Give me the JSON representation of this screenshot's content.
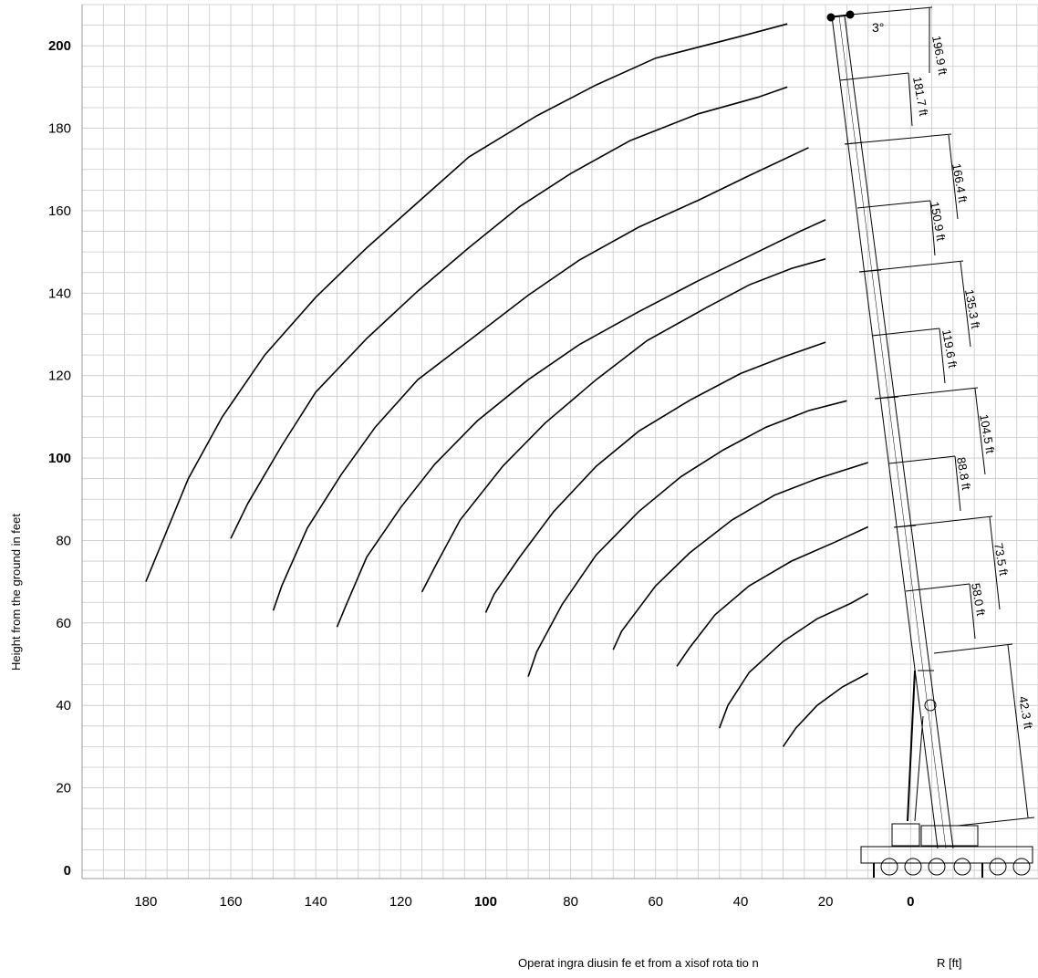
{
  "chart_data": {
    "type": "line",
    "title": "",
    "ylabel": "Height from the ground in feet",
    "xlabel": "Operat ingra diusin fe et from a xisof rota tio n",
    "x_unit_label": "R [ft]",
    "xlim": [
      195,
      -30
    ],
    "ylim": [
      -2,
      210
    ],
    "x_ticks": [
      {
        "value": 180,
        "label": "180",
        "bold": false
      },
      {
        "value": 160,
        "label": "160",
        "bold": false
      },
      {
        "value": 140,
        "label": "140",
        "bold": false
      },
      {
        "value": 120,
        "label": "120",
        "bold": false
      },
      {
        "value": 100,
        "label": "100",
        "bold": true
      },
      {
        "value": 80,
        "label": "80",
        "bold": false
      },
      {
        "value": 60,
        "label": "60",
        "bold": false
      },
      {
        "value": 40,
        "label": "40",
        "bold": false
      },
      {
        "value": 20,
        "label": "20",
        "bold": false
      },
      {
        "value": 0,
        "label": "0",
        "bold": true
      }
    ],
    "y_ticks": [
      {
        "value": 0,
        "label": "0",
        "bold": true
      },
      {
        "value": 20,
        "label": "20",
        "bold": false
      },
      {
        "value": 40,
        "label": "40",
        "bold": false
      },
      {
        "value": 60,
        "label": "60",
        "bold": false
      },
      {
        "value": 80,
        "label": "80",
        "bold": false
      },
      {
        "value": 100,
        "label": "100",
        "bold": true
      },
      {
        "value": 120,
        "label": "120",
        "bold": false
      },
      {
        "value": 140,
        "label": "140",
        "bold": false
      },
      {
        "value": 160,
        "label": "160",
        "bold": false
      },
      {
        "value": 180,
        "label": "180",
        "bold": false
      },
      {
        "value": 200,
        "label": "200",
        "bold": true
      }
    ],
    "grid": true,
    "boom_angle_label": "3°",
    "boom_lengths": [
      "196.9 ft",
      "181.7 ft",
      "166.4 ft",
      "150.9 ft",
      "135.3 ft",
      "119.6 ft",
      "104.5 ft",
      "88.8 ft",
      "73.5 ft",
      "58.0 ft",
      "42.3 ft"
    ],
    "series": [
      {
        "points": [
          [
            180,
            70
          ],
          [
            176,
            80
          ],
          [
            170,
            95
          ],
          [
            162,
            110
          ],
          [
            152,
            125
          ],
          [
            140,
            139
          ],
          [
            128,
            151
          ],
          [
            116,
            162
          ],
          [
            104,
            173
          ],
          [
            88,
            183
          ],
          [
            74,
            190.5
          ],
          [
            60,
            197
          ],
          [
            40,
            202.3
          ],
          [
            29,
            205.3
          ]
        ]
      },
      {
        "points": [
          [
            160,
            80.5
          ],
          [
            156,
            89
          ],
          [
            148,
            103
          ],
          [
            140,
            116
          ],
          [
            128,
            129
          ],
          [
            116,
            140.5
          ],
          [
            104,
            151
          ],
          [
            92,
            161
          ],
          [
            80,
            169
          ],
          [
            66,
            177
          ],
          [
            50,
            183.5
          ],
          [
            36,
            187.5
          ],
          [
            29,
            190
          ]
        ]
      },
      {
        "points": [
          [
            150,
            63
          ],
          [
            148,
            69
          ],
          [
            142,
            83
          ],
          [
            134,
            96
          ],
          [
            126,
            107.5
          ],
          [
            116,
            119
          ],
          [
            102,
            130
          ],
          [
            90,
            139.5
          ],
          [
            78,
            148
          ],
          [
            64,
            156
          ],
          [
            50,
            162.5
          ],
          [
            38,
            168.5
          ],
          [
            24,
            175.3
          ]
        ]
      },
      {
        "points": [
          [
            135,
            59
          ],
          [
            133,
            64
          ],
          [
            128,
            76
          ],
          [
            120,
            88
          ],
          [
            112,
            98.5
          ],
          [
            102,
            109
          ],
          [
            90,
            119
          ],
          [
            78,
            127.5
          ],
          [
            64,
            135.5
          ],
          [
            50,
            143
          ],
          [
            38,
            149
          ],
          [
            26,
            155
          ],
          [
            20,
            157.8
          ]
        ]
      },
      {
        "points": [
          [
            115,
            67.5
          ],
          [
            112,
            73.5
          ],
          [
            106,
            85
          ],
          [
            96,
            98
          ],
          [
            86,
            108.5
          ],
          [
            74,
            119
          ],
          [
            62,
            128.5
          ],
          [
            48,
            136.5
          ],
          [
            38,
            142
          ],
          [
            28,
            146
          ],
          [
            20,
            148.3
          ]
        ]
      },
      {
        "points": [
          [
            100,
            62.5
          ],
          [
            98,
            67
          ],
          [
            92,
            76
          ],
          [
            84,
            87
          ],
          [
            74,
            98
          ],
          [
            64,
            106.5
          ],
          [
            52,
            114
          ],
          [
            40,
            120.5
          ],
          [
            30,
            124.5
          ],
          [
            20,
            128.1
          ]
        ]
      },
      {
        "points": [
          [
            90,
            47
          ],
          [
            88,
            53
          ],
          [
            82,
            64.5
          ],
          [
            74,
            76.5
          ],
          [
            64,
            87
          ],
          [
            54,
            95.5
          ],
          [
            44,
            102
          ],
          [
            34,
            107.5
          ],
          [
            24,
            111.5
          ],
          [
            15,
            113.9
          ]
        ]
      },
      {
        "points": [
          [
            70,
            53.5
          ],
          [
            68,
            58
          ],
          [
            60,
            69
          ],
          [
            52,
            77
          ],
          [
            42,
            85
          ],
          [
            32,
            91
          ],
          [
            22,
            95
          ],
          [
            10,
            98.9
          ]
        ]
      },
      {
        "points": [
          [
            55,
            49.5
          ],
          [
            52,
            54
          ],
          [
            46,
            62
          ],
          [
            38,
            69
          ],
          [
            28,
            75
          ],
          [
            18,
            79.5
          ],
          [
            10,
            83.3
          ]
        ]
      },
      {
        "points": [
          [
            45,
            34.5
          ],
          [
            43,
            40
          ],
          [
            38,
            48
          ],
          [
            30,
            55.5
          ],
          [
            22,
            61
          ],
          [
            14,
            64.8
          ],
          [
            10,
            67.1
          ]
        ]
      },
      {
        "points": [
          [
            30,
            30
          ],
          [
            27,
            34.5
          ],
          [
            22,
            40
          ],
          [
            16,
            44.5
          ],
          [
            10,
            47.8
          ]
        ]
      }
    ]
  }
}
